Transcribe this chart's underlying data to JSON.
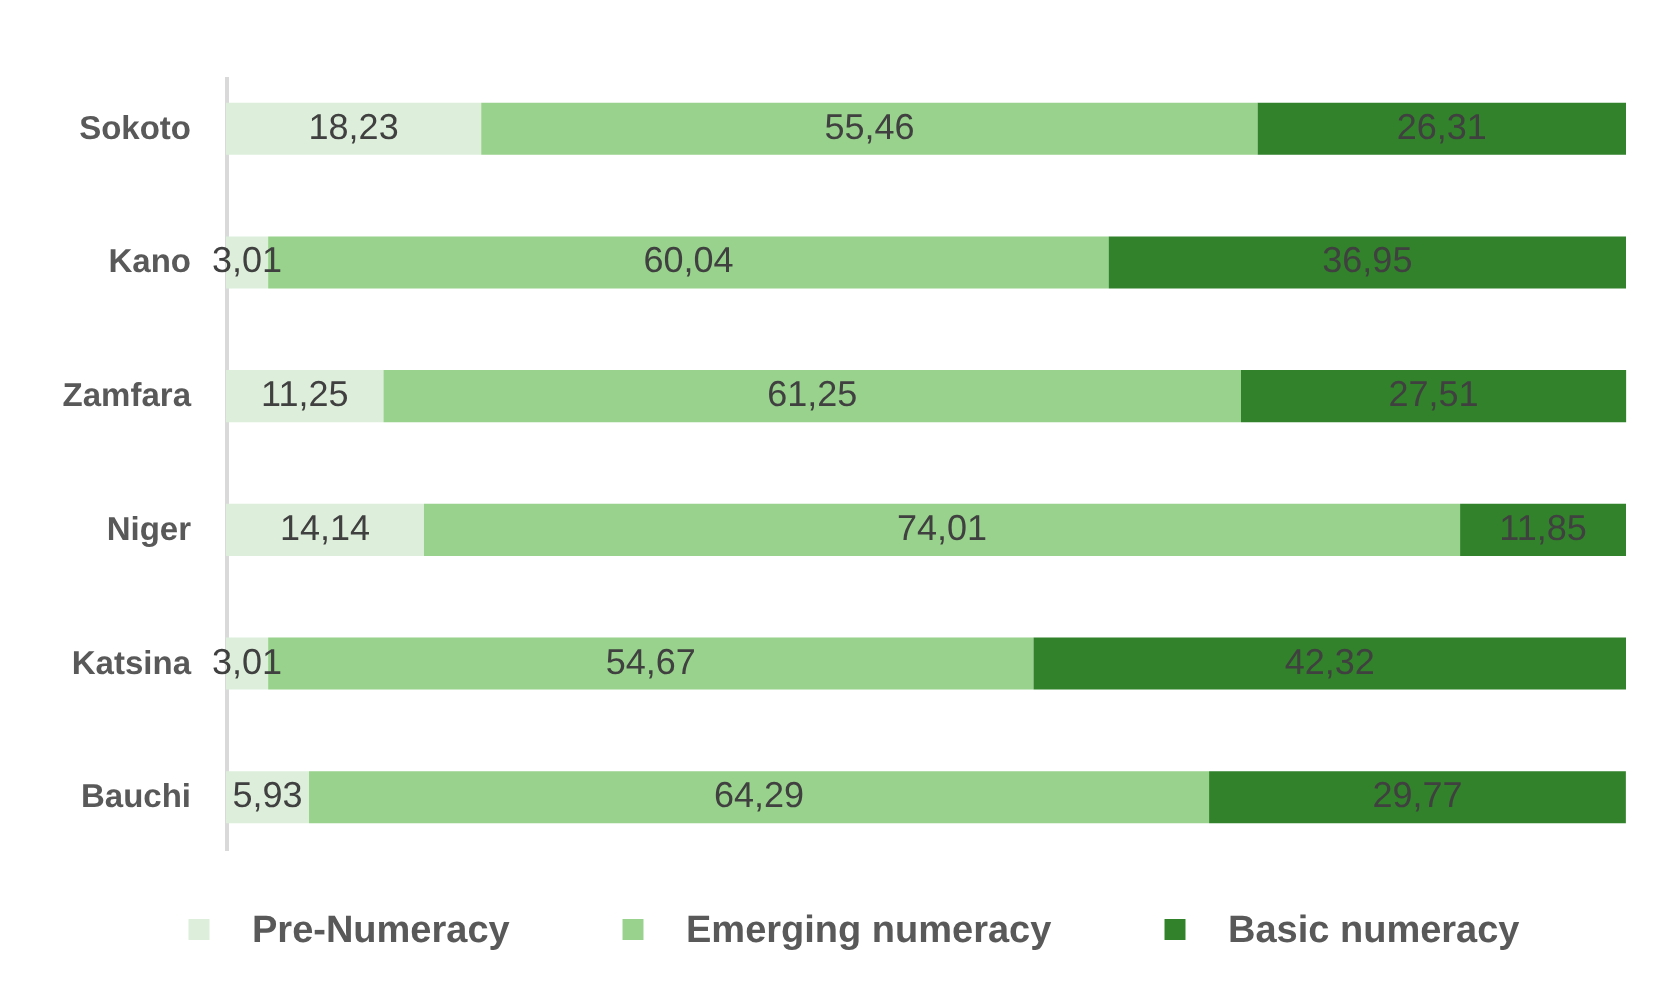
{
  "chart_data": {
    "type": "bar",
    "orientation": "horizontal",
    "stacked": true,
    "categories": [
      "Sokoto",
      "Kano",
      "Zamfara",
      "Niger",
      "Katsina",
      "Bauchi"
    ],
    "series": [
      {
        "name": "Pre-Numeracy",
        "color": "#ddefdb",
        "values": [
          18.23,
          3.01,
          11.25,
          14.14,
          3.01,
          5.93
        ],
        "value_labels": [
          "18,23",
          "3,01",
          "11,25",
          "14,14",
          "3,01",
          "5,93"
        ]
      },
      {
        "name": "Emerging numeracy",
        "color": "#98d28c",
        "values": [
          55.46,
          60.04,
          61.25,
          74.01,
          54.67,
          64.29
        ],
        "value_labels": [
          "55,46",
          "60,04",
          "61,25",
          "74,01",
          "54,67",
          "64,29"
        ]
      },
      {
        "name": "Basic numeracy",
        "color": "#31822b",
        "values": [
          26.31,
          36.95,
          27.51,
          11.85,
          42.32,
          29.77
        ],
        "value_labels": [
          "26,31",
          "36,95",
          "27,51",
          "11,85",
          "42,32",
          "29,77"
        ]
      }
    ],
    "xlim": [
      0,
      100
    ],
    "tick_labels": "y",
    "legend": "bottom"
  }
}
